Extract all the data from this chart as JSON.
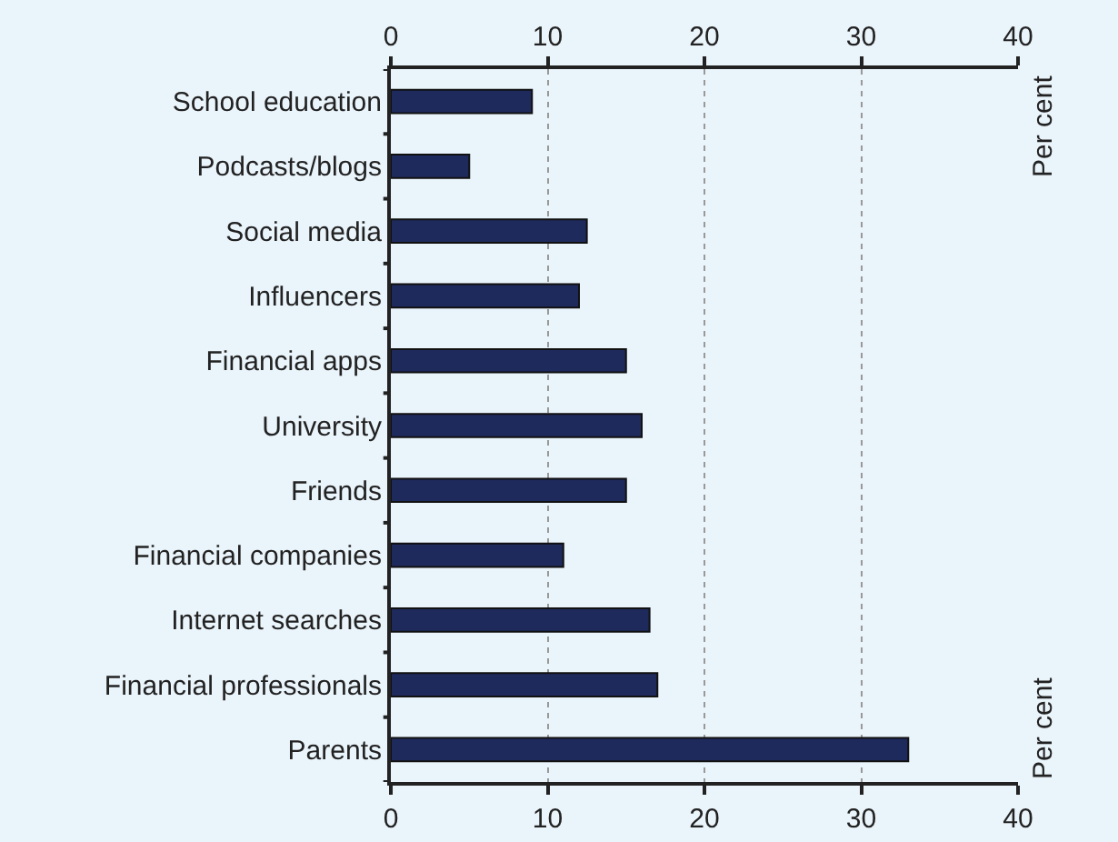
{
  "chart_data": {
    "type": "bar",
    "orientation": "horizontal",
    "categories": [
      "School education",
      "Podcasts/blogs",
      "Social media",
      "Influencers",
      "Financial apps",
      "University",
      "Friends",
      "Financial companies",
      "Internet searches",
      "Financial professionals",
      "Parents"
    ],
    "values": [
      9,
      5,
      12.5,
      12,
      15,
      16,
      15,
      11,
      16.5,
      17,
      33
    ],
    "color": "#1f2a5c",
    "xlim": [
      0,
      40
    ],
    "xticks": [
      0,
      10,
      20,
      30,
      40
    ],
    "x2lim": [
      0,
      40
    ],
    "x2ticks": [
      0,
      10,
      20,
      30,
      40
    ],
    "annotations": [
      "Per cent",
      "Per cent"
    ],
    "grid": "x"
  }
}
